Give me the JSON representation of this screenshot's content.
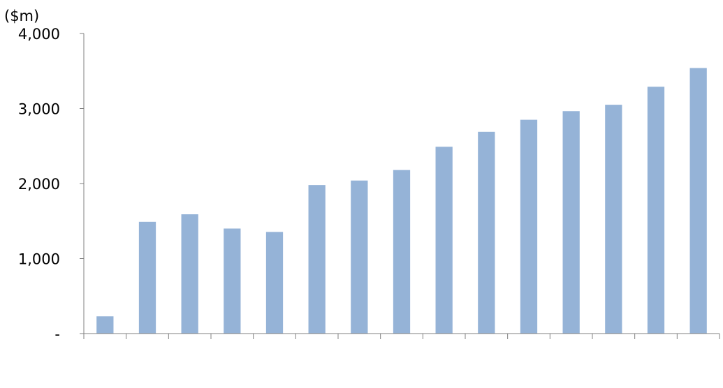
{
  "chart_data": {
    "type": "bar",
    "ylabel": "($m)",
    "ylim": [
      0,
      4000
    ],
    "yticks": [
      {
        "value": 0,
        "label": "-"
      },
      {
        "value": 1000,
        "label": "1,000"
      },
      {
        "value": 2000,
        "label": "2,000"
      },
      {
        "value": 3000,
        "label": "3,000"
      },
      {
        "value": 4000,
        "label": "4,000"
      }
    ],
    "categories": [
      "",
      "",
      "",
      "",
      "",
      "",
      "",
      "",
      "",
      "",
      "",
      "",
      "",
      "",
      ""
    ],
    "values": [
      230,
      1490,
      1590,
      1400,
      1355,
      1980,
      2040,
      2180,
      2490,
      2690,
      2850,
      2965,
      3050,
      3290,
      3540
    ],
    "grid": false,
    "colors": {
      "bar": "#95B3D7",
      "axis": "#808080",
      "text": "#000000"
    }
  }
}
